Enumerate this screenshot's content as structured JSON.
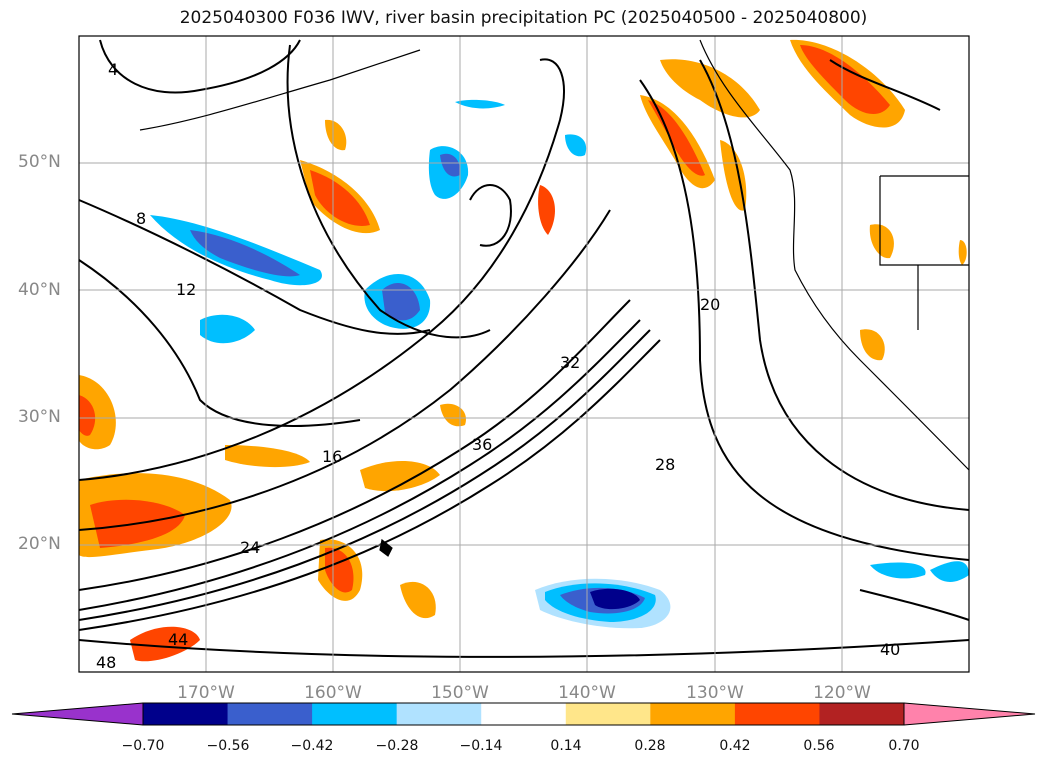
{
  "title": "2025040300 F036 IWV, river basin precipitation PC (2025040500 - 2025040800)",
  "lat_labels": [
    "50°N",
    "40°N",
    "30°N",
    "20°N"
  ],
  "lon_labels": [
    "170°W",
    "160°W",
    "150°W",
    "140°W",
    "130°W",
    "120°W"
  ],
  "contour_labels": [
    "4",
    "8",
    "12",
    "16",
    "20",
    "24",
    "28",
    "32",
    "36",
    "40",
    "44",
    "48"
  ],
  "colorbar": {
    "ticks": [
      "−0.70",
      "−0.56",
      "−0.42",
      "−0.28",
      "−0.14",
      "0.14",
      "0.28",
      "0.42",
      "0.56",
      "0.70"
    ],
    "colors": [
      "#9932cc",
      "#00008b",
      "#3a5fcd",
      "#00bfff",
      "#b0e2ff",
      "#ffffff",
      "#ffe68a",
      "#ffa500",
      "#ff4500",
      "#b22222",
      "#ff82ab"
    ]
  }
}
